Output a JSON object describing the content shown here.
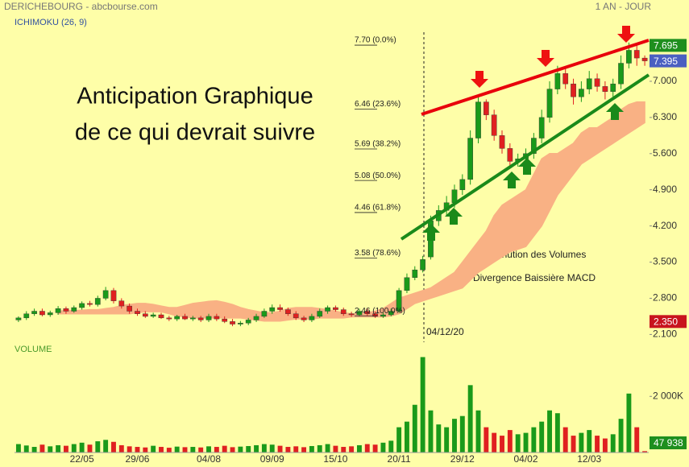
{
  "chart_data": {
    "type": "candlestick",
    "source": "DERICHEBOURG - abcbourse.com",
    "period": "1 AN - JOUR",
    "indicator": "ICHIMOKU (26, 9)",
    "up_color": "#1a9a1a",
    "down_color": "#e02020",
    "categories": [
      null,
      null,
      null,
      null,
      null,
      null,
      null,
      null,
      "22/05",
      null,
      null,
      null,
      null,
      null,
      null,
      "29/06",
      null,
      null,
      null,
      null,
      null,
      null,
      null,
      null,
      "04/08",
      null,
      null,
      null,
      null,
      null,
      null,
      null,
      "09/09",
      null,
      null,
      null,
      null,
      null,
      null,
      null,
      "15/10",
      null,
      null,
      null,
      null,
      null,
      null,
      null,
      "20/11",
      null,
      null,
      null,
      null,
      null,
      null,
      null,
      "29/12",
      null,
      null,
      null,
      null,
      null,
      null,
      null,
      "04/02",
      null,
      null,
      null,
      null,
      null,
      null,
      null,
      "12/03",
      null,
      null,
      null,
      null,
      null,
      null,
      null
    ],
    "open": [
      2.38,
      2.42,
      2.5,
      2.55,
      2.48,
      2.52,
      2.6,
      2.55,
      2.62,
      2.7,
      2.68,
      2.8,
      2.95,
      2.75,
      2.65,
      2.55,
      2.5,
      2.45,
      2.48,
      2.42,
      2.4,
      2.45,
      2.4,
      2.42,
      2.38,
      2.45,
      2.4,
      2.35,
      2.3,
      2.32,
      2.38,
      2.45,
      2.55,
      2.62,
      2.58,
      2.5,
      2.42,
      2.38,
      2.45,
      2.55,
      2.62,
      2.58,
      2.5,
      2.48,
      2.55,
      2.5,
      2.45,
      2.48,
      2.55,
      2.95,
      3.2,
      3.35,
      3.6,
      4.3,
      4.5,
      4.65,
      4.9,
      5.1,
      5.9,
      6.6,
      6.35,
      5.95,
      5.7,
      5.45,
      5.5,
      5.6,
      5.9,
      6.3,
      6.85,
      7.15,
      6.95,
      6.7,
      6.85,
      7.05,
      6.9,
      6.8,
      6.95,
      7.35,
      7.6,
      7.45
    ],
    "high": [
      2.45,
      2.55,
      2.6,
      2.6,
      2.56,
      2.65,
      2.64,
      2.66,
      2.74,
      2.75,
      2.85,
      3.02,
      3.0,
      2.8,
      2.7,
      2.6,
      2.55,
      2.52,
      2.52,
      2.46,
      2.48,
      2.5,
      2.46,
      2.46,
      2.5,
      2.5,
      2.45,
      2.4,
      2.36,
      2.42,
      2.5,
      2.6,
      2.68,
      2.68,
      2.62,
      2.55,
      2.46,
      2.5,
      2.6,
      2.66,
      2.66,
      2.62,
      2.54,
      2.6,
      2.6,
      2.54,
      2.52,
      2.6,
      3.0,
      3.28,
      3.42,
      3.62,
      4.4,
      4.6,
      4.78,
      5.0,
      5.2,
      6.05,
      6.75,
      6.65,
      6.45,
      6.05,
      5.8,
      5.6,
      5.7,
      6.0,
      6.45,
      7.0,
      7.3,
      7.25,
      7.05,
      7.0,
      7.2,
      7.15,
      7.0,
      7.05,
      7.5,
      7.75,
      7.7,
      7.5
    ],
    "low": [
      2.34,
      2.38,
      2.46,
      2.45,
      2.44,
      2.48,
      2.5,
      2.52,
      2.58,
      2.64,
      2.64,
      2.76,
      2.7,
      2.6,
      2.5,
      2.46,
      2.42,
      2.42,
      2.4,
      2.36,
      2.36,
      2.38,
      2.36,
      2.34,
      2.34,
      2.36,
      2.32,
      2.26,
      2.26,
      2.28,
      2.34,
      2.42,
      2.5,
      2.54,
      2.46,
      2.38,
      2.34,
      2.34,
      2.42,
      2.5,
      2.54,
      2.46,
      2.44,
      2.45,
      2.46,
      2.42,
      2.42,
      2.45,
      2.52,
      2.9,
      3.15,
      3.3,
      3.55,
      4.2,
      4.4,
      4.55,
      4.8,
      5.0,
      5.8,
      6.25,
      5.85,
      5.6,
      5.35,
      5.35,
      5.42,
      5.5,
      5.8,
      6.2,
      6.75,
      6.85,
      6.55,
      6.6,
      6.75,
      6.8,
      6.65,
      6.7,
      6.85,
      7.25,
      7.3,
      7.3
    ],
    "close": [
      2.42,
      2.5,
      2.55,
      2.48,
      2.52,
      2.6,
      2.55,
      2.62,
      2.7,
      2.68,
      2.8,
      2.95,
      2.75,
      2.65,
      2.55,
      2.5,
      2.45,
      2.48,
      2.42,
      2.4,
      2.45,
      2.4,
      2.42,
      2.38,
      2.45,
      2.4,
      2.35,
      2.3,
      2.32,
      2.38,
      2.45,
      2.55,
      2.62,
      2.58,
      2.5,
      2.42,
      2.38,
      2.45,
      2.55,
      2.62,
      2.58,
      2.5,
      2.48,
      2.55,
      2.5,
      2.45,
      2.48,
      2.55,
      2.95,
      3.2,
      3.35,
      3.55,
      4.3,
      4.5,
      4.65,
      4.9,
      5.1,
      5.9,
      6.6,
      6.35,
      5.95,
      5.7,
      5.45,
      5.5,
      5.6,
      5.9,
      6.3,
      6.85,
      7.15,
      6.95,
      6.7,
      6.85,
      7.05,
      6.9,
      6.8,
      6.95,
      7.35,
      7.6,
      7.45,
      7.395
    ],
    "cloud": {
      "color": "#f9b184",
      "upper": [
        null,
        null,
        null,
        null,
        null,
        2.55,
        2.56,
        2.56,
        2.57,
        2.58,
        2.58,
        2.6,
        2.62,
        2.66,
        2.68,
        2.7,
        2.7,
        2.68,
        2.65,
        2.62,
        2.62,
        2.66,
        2.7,
        2.72,
        2.74,
        2.75,
        2.72,
        2.68,
        2.62,
        2.58,
        2.55,
        2.52,
        2.52,
        2.55,
        2.6,
        2.62,
        2.62,
        2.62,
        2.6,
        2.58,
        2.55,
        2.52,
        2.5,
        2.5,
        2.52,
        2.55,
        2.6,
        2.7,
        2.8,
        2.85,
        2.9,
        2.95,
        3.0,
        3.1,
        3.2,
        3.3,
        3.5,
        3.7,
        3.9,
        4.1,
        4.4,
        4.6,
        4.7,
        4.8,
        4.9,
        5.2,
        5.5,
        5.6,
        5.6,
        5.7,
        5.8,
        6.0,
        6.1,
        6.1,
        6.2,
        6.3,
        6.45,
        6.55,
        6.6,
        6.6
      ],
      "lower": [
        null,
        null,
        null,
        null,
        null,
        2.5,
        2.5,
        2.5,
        2.5,
        2.5,
        2.5,
        2.5,
        2.5,
        2.5,
        2.5,
        2.52,
        2.54,
        2.54,
        2.54,
        2.5,
        2.46,
        2.44,
        2.42,
        2.42,
        2.42,
        2.42,
        2.42,
        2.42,
        2.42,
        2.4,
        2.38,
        2.36,
        2.36,
        2.36,
        2.38,
        2.4,
        2.4,
        2.4,
        2.42,
        2.42,
        2.42,
        2.42,
        2.44,
        2.44,
        2.44,
        2.44,
        2.44,
        2.46,
        2.5,
        2.6,
        2.7,
        2.75,
        2.8,
        2.85,
        2.9,
        2.95,
        3.0,
        3.15,
        3.3,
        3.4,
        3.5,
        3.6,
        3.7,
        3.75,
        3.8,
        4.0,
        4.2,
        4.5,
        4.8,
        5.0,
        5.2,
        5.4,
        5.5,
        5.6,
        5.7,
        5.8,
        5.9,
        6.0,
        6.1,
        6.2
      ]
    },
    "ylim": [
      1.95,
      7.95
    ],
    "yticks": [
      {
        "value": 2.1,
        "label": "2.100"
      },
      {
        "value": 2.8,
        "label": "2.800"
      },
      {
        "value": 3.5,
        "label": "3.500"
      },
      {
        "value": 4.2,
        "label": "4.200"
      },
      {
        "value": 4.9,
        "label": "4.900"
      },
      {
        "value": 5.6,
        "label": "5.600"
      },
      {
        "value": 6.3,
        "label": "6.300"
      },
      {
        "value": 7,
        "label": "7.000"
      }
    ],
    "price_labels": [
      {
        "value": 7.695,
        "label": "7.695",
        "color": "#1e8f1e"
      },
      {
        "value": 7.395,
        "label": "7.395",
        "color": "#4a5fc1"
      },
      {
        "value": 2.35,
        "label": "2.350",
        "color": "#c8141e"
      }
    ],
    "fib_levels": [
      {
        "value": 7.7,
        "label": "7.70 (0.0%)"
      },
      {
        "value": 6.46,
        "label": "6.46 (23.6%)"
      },
      {
        "value": 5.69,
        "label": "5.69 (38.2%)"
      },
      {
        "value": 5.08,
        "label": "5.08 (50.0%)"
      },
      {
        "value": 4.46,
        "label": "4.46 (61.8%)"
      },
      {
        "value": 3.58,
        "label": "3.58 (78.6%)"
      },
      {
        "value": 2.46,
        "label": "2.46 (100.0%)"
      }
    ],
    "date_marker": "04/12/20",
    "annotations": [
      "Anticipation Graphique",
      "de ce qui devrait suivre",
      "Diminution des Volumes",
      "Divergence Baissière MACD"
    ],
    "volume": {
      "title": "VOLUME",
      "values": [
        300000,
        250000,
        200000,
        280000,
        220000,
        260000,
        240000,
        300000,
        350000,
        280000,
        400000,
        450000,
        380000,
        260000,
        220000,
        200000,
        180000,
        240000,
        200000,
        170000,
        210000,
        190000,
        200000,
        180000,
        220000,
        200000,
        240000,
        190000,
        210000,
        230000,
        260000,
        300000,
        280000,
        240000,
        200000,
        220000,
        190000,
        230000,
        260000,
        300000,
        240000,
        200000,
        220000,
        260000,
        300000,
        280000,
        350000,
        420000,
        900000,
        1100000,
        1700000,
        3400000,
        1500000,
        1000000,
        900000,
        1200000,
        1300000,
        2400000,
        1500000,
        900000,
        700000,
        600000,
        800000,
        650000,
        700000,
        900000,
        1100000,
        1500000,
        1400000,
        900000,
        600000,
        700000,
        800000,
        600000,
        500000,
        650000,
        1200000,
        2100000,
        900000,
        47938
      ],
      "ylim": [
        0,
        3500000
      ],
      "yticks": [
        {
          "value": 2000000,
          "label": "2 000K"
        }
      ],
      "last_label": {
        "value": 47938,
        "label": "47 938",
        "color": "#1e8f1e"
      }
    }
  }
}
